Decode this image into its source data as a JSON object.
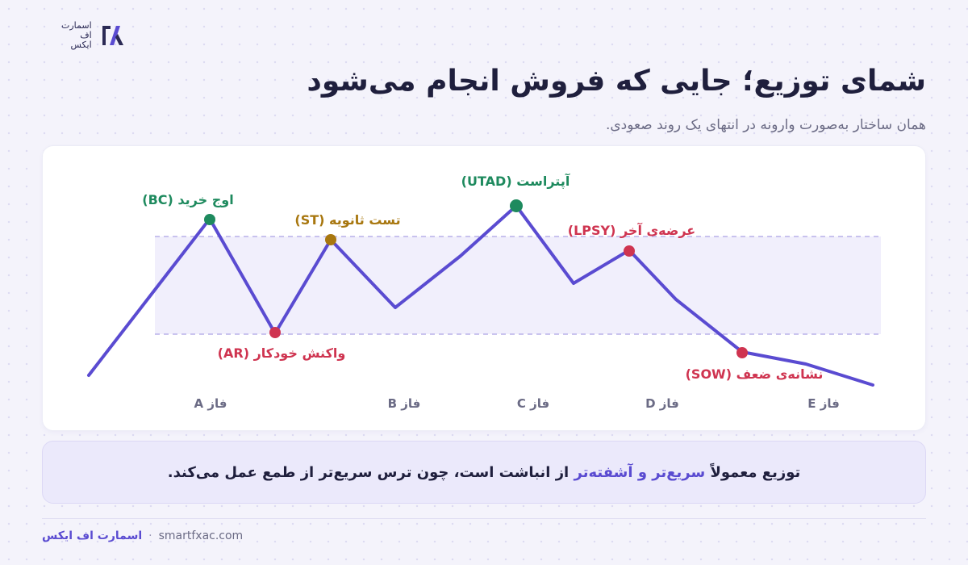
{
  "logo": {
    "line1": "اسمارت",
    "line2": "اف",
    "line3": "ایکس"
  },
  "title": "شمای توزیع؛ جایی که فروش انجام می‌شود",
  "subtitle": "همان ساختار به‌صورت وارونه در انتهای یک روند صعودی.",
  "chart": {
    "points": [
      {
        "id": "bc",
        "label": "اوج خرید (BC)",
        "color": "#1e8a5e"
      },
      {
        "id": "ar",
        "label": "واکنش خودکار (AR)",
        "color": "#cf3450"
      },
      {
        "id": "st",
        "label": "تست ثانویه (ST)",
        "color": "#a8770f"
      },
      {
        "id": "utad",
        "label": "آپتراست (UTAD)",
        "color": "#1e8a5e"
      },
      {
        "id": "lpsy",
        "label": "عرضه‌ی آخر (LPSY)",
        "color": "#cf3450"
      },
      {
        "id": "sow",
        "label": "نشانه‌ی ضعف (SOW)",
        "color": "#cf3450"
      }
    ],
    "phases": [
      "فاز A",
      "فاز B",
      "فاز C",
      "فاز D",
      "فاز E"
    ],
    "colors": {
      "line": "#5a4bd1",
      "range_fill": "#f1effc",
      "range_border": "#b9b0ea",
      "phase_label": "#6b6b85"
    }
  },
  "note": {
    "before": "توزیع معمولاً ",
    "highlight": "سریع‌تر و آشفته‌تر",
    "after": " از انباشت است، چون ترس سریع‌تر از طمع عمل می‌کند."
  },
  "footer": {
    "brand": "اسمارت اف ایکس",
    "separator": "·",
    "site": "smartfxac.com"
  }
}
